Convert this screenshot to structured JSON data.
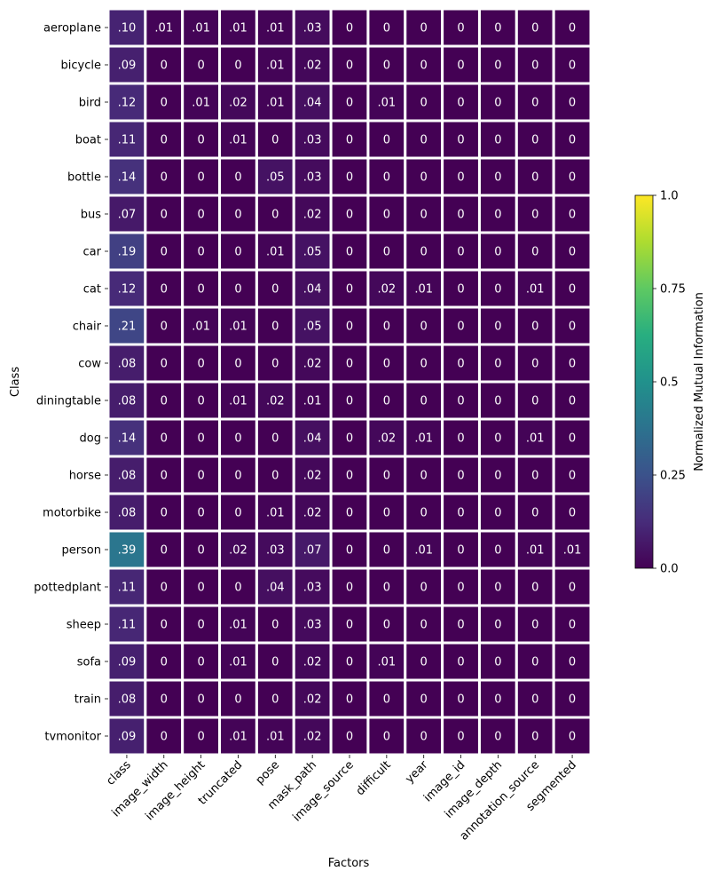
{
  "chart_data": {
    "type": "heatmap",
    "title": "",
    "xlabel": "Factors",
    "ylabel": "Class",
    "x_categories": [
      "class",
      "image_width",
      "image_height",
      "truncated",
      "pose",
      "mask_path",
      "image_source",
      "difficult",
      "year",
      "image_id",
      "image_depth",
      "annotation_source",
      "segmented"
    ],
    "y_categories": [
      "aeroplane",
      "bicycle",
      "bird",
      "boat",
      "bottle",
      "bus",
      "car",
      "cat",
      "chair",
      "cow",
      "diningtable",
      "dog",
      "horse",
      "motorbike",
      "person",
      "pottedplant",
      "sheep",
      "sofa",
      "train",
      "tvmonitor"
    ],
    "values": [
      [
        0.1,
        0.01,
        0.01,
        0.01,
        0.01,
        0.03,
        0,
        0,
        0,
        0,
        0,
        0,
        0
      ],
      [
        0.09,
        0,
        0,
        0,
        0.01,
        0.02,
        0,
        0,
        0,
        0,
        0,
        0,
        0
      ],
      [
        0.12,
        0,
        0.01,
        0.02,
        0.01,
        0.04,
        0,
        0.01,
        0,
        0,
        0,
        0,
        0
      ],
      [
        0.11,
        0,
        0,
        0.01,
        0,
        0.03,
        0,
        0,
        0,
        0,
        0,
        0,
        0
      ],
      [
        0.14,
        0,
        0,
        0,
        0.05,
        0.03,
        0,
        0,
        0,
        0,
        0,
        0,
        0
      ],
      [
        0.07,
        0,
        0,
        0,
        0,
        0.02,
        0,
        0,
        0,
        0,
        0,
        0,
        0
      ],
      [
        0.19,
        0,
        0,
        0,
        0.01,
        0.05,
        0,
        0,
        0,
        0,
        0,
        0,
        0
      ],
      [
        0.12,
        0,
        0,
        0,
        0,
        0.04,
        0,
        0.02,
        0.01,
        0,
        0,
        0.01,
        0
      ],
      [
        0.21,
        0,
        0.01,
        0.01,
        0,
        0.05,
        0,
        0,
        0,
        0,
        0,
        0,
        0
      ],
      [
        0.08,
        0,
        0,
        0,
        0,
        0.02,
        0,
        0,
        0,
        0,
        0,
        0,
        0
      ],
      [
        0.08,
        0,
        0,
        0.01,
        0.02,
        0.01,
        0,
        0,
        0,
        0,
        0,
        0,
        0
      ],
      [
        0.14,
        0,
        0,
        0,
        0,
        0.04,
        0,
        0.02,
        0.01,
        0,
        0,
        0.01,
        0
      ],
      [
        0.08,
        0,
        0,
        0,
        0,
        0.02,
        0,
        0,
        0,
        0,
        0,
        0,
        0
      ],
      [
        0.08,
        0,
        0,
        0,
        0.01,
        0.02,
        0,
        0,
        0,
        0,
        0,
        0,
        0
      ],
      [
        0.39,
        0,
        0,
        0.02,
        0.03,
        0.07,
        0,
        0,
        0.01,
        0,
        0,
        0.01,
        0.01
      ],
      [
        0.11,
        0,
        0,
        0,
        0.04,
        0.03,
        0,
        0,
        0,
        0,
        0,
        0,
        0
      ],
      [
        0.11,
        0,
        0,
        0.01,
        0,
        0.03,
        0,
        0,
        0,
        0,
        0,
        0,
        0
      ],
      [
        0.09,
        0,
        0,
        0.01,
        0,
        0.02,
        0,
        0.01,
        0,
        0,
        0,
        0,
        0
      ],
      [
        0.08,
        0,
        0,
        0,
        0,
        0.02,
        0,
        0,
        0,
        0,
        0,
        0,
        0
      ],
      [
        0.09,
        0,
        0,
        0.01,
        0.01,
        0.02,
        0,
        0,
        0,
        0,
        0,
        0,
        0
      ]
    ],
    "value_labels": [
      [
        ".10",
        ".01",
        ".01",
        ".01",
        ".01",
        ".03",
        "0",
        "0",
        "0",
        "0",
        "0",
        "0",
        "0"
      ],
      [
        ".09",
        "0",
        "0",
        "0",
        ".01",
        ".02",
        "0",
        "0",
        "0",
        "0",
        "0",
        "0",
        "0"
      ],
      [
        ".12",
        "0",
        ".01",
        ".02",
        ".01",
        ".04",
        "0",
        ".01",
        "0",
        "0",
        "0",
        "0",
        "0"
      ],
      [
        ".11",
        "0",
        "0",
        ".01",
        "0",
        ".03",
        "0",
        "0",
        "0",
        "0",
        "0",
        "0",
        "0"
      ],
      [
        ".14",
        "0",
        "0",
        "0",
        ".05",
        ".03",
        "0",
        "0",
        "0",
        "0",
        "0",
        "0",
        "0"
      ],
      [
        ".07",
        "0",
        "0",
        "0",
        "0",
        ".02",
        "0",
        "0",
        "0",
        "0",
        "0",
        "0",
        "0"
      ],
      [
        ".19",
        "0",
        "0",
        "0",
        ".01",
        ".05",
        "0",
        "0",
        "0",
        "0",
        "0",
        "0",
        "0"
      ],
      [
        ".12",
        "0",
        "0",
        "0",
        "0",
        ".04",
        "0",
        ".02",
        ".01",
        "0",
        "0",
        ".01",
        "0"
      ],
      [
        ".21",
        "0",
        ".01",
        ".01",
        "0",
        ".05",
        "0",
        "0",
        "0",
        "0",
        "0",
        "0",
        "0"
      ],
      [
        ".08",
        "0",
        "0",
        "0",
        "0",
        ".02",
        "0",
        "0",
        "0",
        "0",
        "0",
        "0",
        "0"
      ],
      [
        ".08",
        "0",
        "0",
        ".01",
        ".02",
        ".01",
        "0",
        "0",
        "0",
        "0",
        "0",
        "0",
        "0"
      ],
      [
        ".14",
        "0",
        "0",
        "0",
        "0",
        ".04",
        "0",
        ".02",
        ".01",
        "0",
        "0",
        ".01",
        "0"
      ],
      [
        ".08",
        "0",
        "0",
        "0",
        "0",
        ".02",
        "0",
        "0",
        "0",
        "0",
        "0",
        "0",
        "0"
      ],
      [
        ".08",
        "0",
        "0",
        "0",
        ".01",
        ".02",
        "0",
        "0",
        "0",
        "0",
        "0",
        "0",
        "0"
      ],
      [
        ".39",
        "0",
        "0",
        ".02",
        ".03",
        ".07",
        "0",
        "0",
        ".01",
        "0",
        "0",
        ".01",
        ".01"
      ],
      [
        ".11",
        "0",
        "0",
        "0",
        ".04",
        ".03",
        "0",
        "0",
        "0",
        "0",
        "0",
        "0",
        "0"
      ],
      [
        ".11",
        "0",
        "0",
        ".01",
        "0",
        ".03",
        "0",
        "0",
        "0",
        "0",
        "0",
        "0",
        "0"
      ],
      [
        ".09",
        "0",
        "0",
        ".01",
        "0",
        ".02",
        "0",
        ".01",
        "0",
        "0",
        "0",
        "0",
        "0"
      ],
      [
        ".08",
        "0",
        "0",
        "0",
        "0",
        ".02",
        "0",
        "0",
        "0",
        "0",
        "0",
        "0",
        "0"
      ],
      [
        ".09",
        "0",
        "0",
        ".01",
        ".01",
        ".02",
        "0",
        "0",
        "0",
        "0",
        "0",
        "0",
        "0"
      ]
    ],
    "colorbar": {
      "label": "Normalized Mutual Information",
      "range": [
        0,
        1
      ],
      "ticks": [
        0,
        0.25,
        0.5,
        0.75,
        1
      ],
      "tick_labels": [
        "0.0",
        "0.25",
        "0.5",
        "0.75",
        "1.0"
      ],
      "colormap": "viridis"
    },
    "grid": true,
    "cell_border_color": "#ffffff"
  }
}
